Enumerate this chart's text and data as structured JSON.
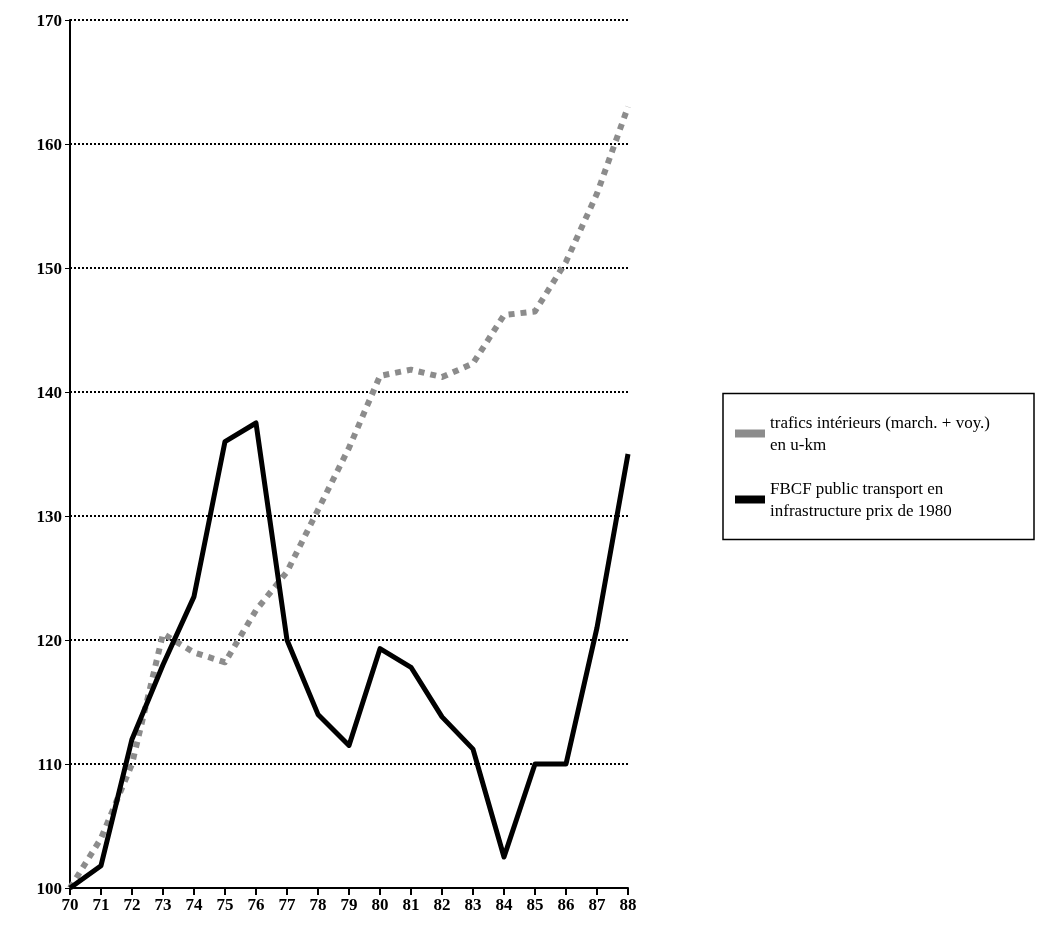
{
  "chart_data": {
    "type": "line",
    "categories": [
      "70",
      "71",
      "72",
      "73",
      "74",
      "75",
      "76",
      "77",
      "78",
      "79",
      "80",
      "81",
      "82",
      "83",
      "84",
      "85",
      "86",
      "87",
      "88"
    ],
    "series": [
      {
        "name": "trafics intérieurs (march. + voy.) en u-km",
        "color": "#8c8c8c",
        "line_style": "dotted",
        "values": [
          100,
          104,
          110,
          120.5,
          119,
          118.2,
          122.4,
          125.5,
          130.5,
          135.5,
          141.3,
          141.8,
          141.2,
          142.3,
          146.2,
          146.5,
          150.5,
          156,
          163
        ]
      },
      {
        "name": "FBCF public transport en infrastructure prix de 1980",
        "color": "#000000",
        "line_style": "solid",
        "values": [
          100,
          101.8,
          112,
          118,
          123.5,
          136,
          137.5,
          120,
          114,
          111.5,
          119.3,
          117.8,
          113.8,
          111.2,
          102.5,
          110,
          110,
          121,
          135
        ]
      }
    ],
    "ylim": [
      100,
      170
    ],
    "yticks": [
      100,
      110,
      120,
      130,
      140,
      150,
      160,
      170
    ],
    "grid": "y",
    "legend": "right",
    "marker": "none"
  }
}
